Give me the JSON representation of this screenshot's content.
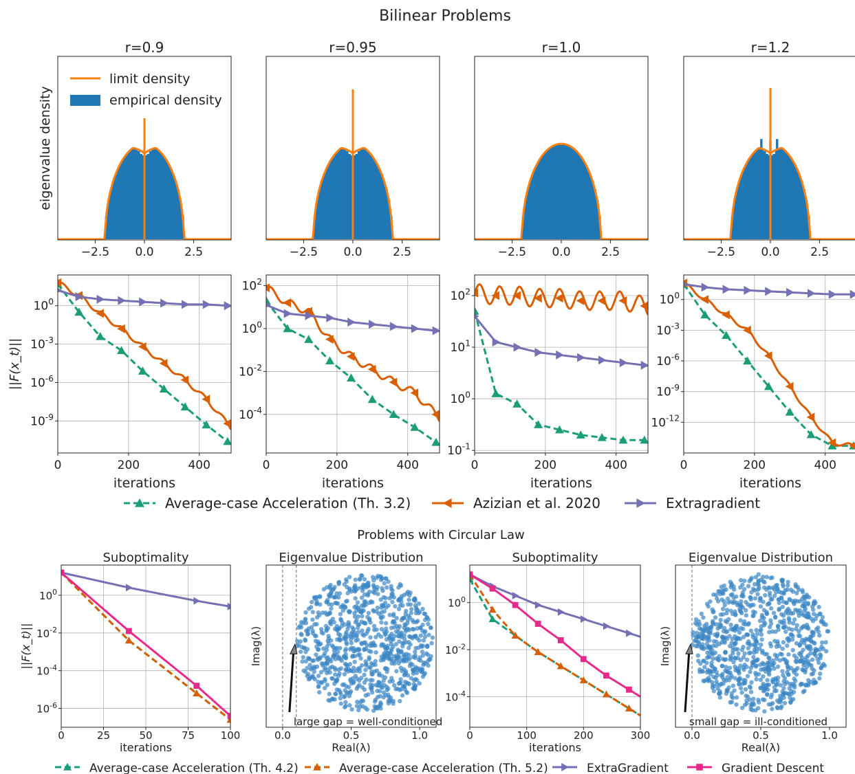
{
  "title": "Bilinear Problems",
  "subtitle": "Problems with Circular Law",
  "colors": {
    "green": "#1b9e77",
    "orange": "#d95f02",
    "purple": "#7570b3",
    "pink": "#e7298a",
    "blue": "#1f77b4",
    "density": "#ff7f0e",
    "grid": "#b0b0b0",
    "scatter": "#3a86c4"
  },
  "legend_top": {
    "items": [
      {
        "label": "Average-case Acceleration (Th. 3.2)",
        "color": "#1b9e77",
        "dash": true,
        "marker": "triangle-up"
      },
      {
        "label": "Azizian et al. 2020",
        "color": "#d95f02",
        "dash": false,
        "marker": "triangle-left"
      },
      {
        "label": "Extragradient",
        "color": "#7570b3",
        "dash": false,
        "marker": "triangle-right"
      }
    ]
  },
  "legend_bottom": {
    "items": [
      {
        "label": "Average-case Acceleration (Th. 4.2)",
        "color": "#1b9e77",
        "dash": true,
        "marker": "triangle-up"
      },
      {
        "label": "Average-case Acceleration (Th. 5.2)",
        "color": "#d95f02",
        "dash": true,
        "marker": "triangle-up"
      },
      {
        "label": "ExtraGradient",
        "color": "#7570b3",
        "dash": false,
        "marker": "triangle-right"
      },
      {
        "label": "Gradient Descent",
        "color": "#e7298a",
        "dash": false,
        "marker": "square"
      }
    ]
  },
  "chart_data": [
    {
      "type": "bar",
      "title": "r=0.9",
      "ylabel": "eigenvalue density",
      "xticks": [
        "−2.5",
        "0.0",
        "2.5"
      ],
      "xlim": [
        -4.4,
        4.4
      ],
      "spike": true,
      "legend": [
        "limit density",
        "empirical density"
      ]
    },
    {
      "type": "bar",
      "title": "r=0.95",
      "ylabel": "",
      "xticks": [
        "−2.5",
        "0.0",
        "2.5"
      ],
      "xlim": [
        -4.4,
        4.4
      ],
      "spike": true
    },
    {
      "type": "bar",
      "title": "r=1.0",
      "ylabel": "",
      "xticks": [
        "−2.5",
        "0.0",
        "2.5"
      ],
      "xlim": [
        -4.4,
        4.4
      ],
      "spike": false
    },
    {
      "type": "bar",
      "title": "r=1.2",
      "ylabel": "",
      "xticks": [
        "−2.5",
        "0.0",
        "2.5"
      ],
      "xlim": [
        -4.4,
        4.4
      ],
      "spike": true
    },
    {
      "type": "line",
      "scale": "log",
      "xlabel": "iterations",
      "ylabel": "||F(x_t)||",
      "xlim": [
        0,
        490
      ],
      "ylim": [
        -11.5,
        2.4
      ],
      "xticks": [
        "0",
        "200",
        "400"
      ],
      "yticks": [
        "10^0",
        "10^-3",
        "10^-6",
        "10^-9"
      ],
      "series": [
        {
          "x": [
            0,
            60,
            120,
            180,
            240,
            300,
            360,
            420,
            480
          ],
          "log10": [
            1.7,
            -0.5,
            -2.4,
            -3.5,
            -5.1,
            -6.5,
            -7.9,
            -9.3,
            -10.6
          ]
        },
        {
          "x": [
            0,
            60,
            120,
            180,
            240,
            300,
            360,
            420,
            480
          ],
          "log10": [
            1.8,
            0.8,
            -0.6,
            -1.8,
            -3.2,
            -4.5,
            -5.8,
            -7.3,
            -9.2
          ]
        },
        {
          "x": [
            0,
            60,
            120,
            180,
            240,
            300,
            360,
            420,
            480
          ],
          "log10": [
            1.2,
            0.7,
            0.5,
            0.4,
            0.3,
            0.2,
            0.1,
            0.1,
            0.0
          ]
        }
      ]
    },
    {
      "type": "line",
      "scale": "log",
      "xlabel": "iterations",
      "ylabel": "",
      "xlim": [
        0,
        490
      ],
      "ylim": [
        -5.8,
        2.5
      ],
      "xticks": [
        "0",
        "200",
        "400"
      ],
      "yticks": [
        "10^2",
        "10^0",
        "10^-2",
        "10^-4"
      ],
      "series": [
        {
          "x": [
            0,
            60,
            120,
            180,
            240,
            300,
            360,
            420,
            480
          ],
          "log10": [
            1.3,
            0.0,
            -0.5,
            -1.5,
            -2.3,
            -3.3,
            -4.0,
            -4.6,
            -5.3
          ]
        },
        {
          "x": [
            0,
            60,
            120,
            180,
            240,
            300,
            360,
            420,
            480
          ],
          "log10": [
            1.9,
            1.2,
            0.8,
            -0.5,
            -1.3,
            -1.9,
            -2.5,
            -3.0,
            -4.0
          ]
        },
        {
          "x": [
            0,
            60,
            120,
            180,
            240,
            300,
            360,
            420,
            480
          ],
          "log10": [
            1.1,
            0.7,
            0.6,
            0.5,
            0.3,
            0.2,
            0.1,
            0.0,
            -0.1
          ]
        }
      ]
    },
    {
      "type": "line",
      "scale": "log",
      "xlabel": "iterations",
      "ylabel": "",
      "xlim": [
        0,
        490
      ],
      "ylim": [
        -1.05,
        2.4
      ],
      "xticks": [
        "0",
        "200",
        "400"
      ],
      "yticks": [
        "10^2",
        "10^1",
        "10^0",
        "10^-1"
      ],
      "series": [
        {
          "x": [
            0,
            60,
            120,
            180,
            240,
            300,
            360,
            420,
            480
          ],
          "log10": [
            1.7,
            0.1,
            -0.1,
            -0.5,
            -0.6,
            -0.7,
            -0.75,
            -0.8,
            -0.8
          ]
        },
        {
          "x": [
            0,
            60,
            120,
            180,
            240,
            300,
            360,
            420,
            480
          ],
          "log10": [
            2.05,
            2.0,
            2.0,
            1.95,
            1.95,
            1.9,
            1.9,
            1.9,
            1.8
          ]
        },
        {
          "x": [
            0,
            60,
            120,
            180,
            240,
            300,
            360,
            420,
            480
          ],
          "log10": [
            1.6,
            1.1,
            1.0,
            0.9,
            0.85,
            0.8,
            0.75,
            0.7,
            0.65
          ]
        }
      ]
    },
    {
      "type": "line",
      "scale": "log",
      "xlabel": "iterations",
      "ylabel": "",
      "xlim": [
        0,
        490
      ],
      "ylim": [
        -15.0,
        2.4
      ],
      "xticks": [
        "0",
        "200",
        "400"
      ],
      "yticks": [
        "10^0",
        "10^-3",
        "10^-6",
        "10^-9",
        "10^-12"
      ],
      "series": [
        {
          "x": [
            0,
            60,
            120,
            180,
            240,
            300,
            360,
            420,
            480
          ],
          "log10": [
            1.5,
            -1.5,
            -3.5,
            -6.0,
            -8.5,
            -11.0,
            -13.2,
            -14.3,
            -14.3
          ]
        },
        {
          "x": [
            0,
            60,
            120,
            180,
            240,
            300,
            360,
            420,
            480
          ],
          "log10": [
            1.6,
            0.0,
            -1.5,
            -3.0,
            -5.5,
            -8.5,
            -11.5,
            -14.0,
            -14.3
          ]
        },
        {
          "x": [
            0,
            60,
            120,
            180,
            240,
            300,
            360,
            420,
            480
          ],
          "log10": [
            1.5,
            1.2,
            1.0,
            0.9,
            0.8,
            0.7,
            0.6,
            0.5,
            0.5
          ]
        }
      ]
    },
    {
      "type": "line",
      "scale": "log",
      "title": "Suboptimality",
      "xlabel": "iterations",
      "ylabel": "||F(x_t)||",
      "xlim": [
        0,
        100
      ],
      "ylim": [
        -7.0,
        1.6
      ],
      "xticks": [
        "0",
        "25",
        "50",
        "75",
        "100"
      ],
      "yticks": [
        "10^0",
        "10^-2",
        "10^-4",
        "10^-6"
      ],
      "series": [
        {
          "x": [
            0,
            40,
            80,
            100
          ],
          "log10": [
            1.2,
            -2.4,
            -5.2,
            -6.6
          ]
        },
        {
          "x": [
            0,
            40,
            80,
            100
          ],
          "log10": [
            1.2,
            -2.4,
            -5.2,
            -6.6
          ]
        },
        {
          "x": [
            0,
            40,
            80,
            100
          ],
          "log10": [
            1.2,
            0.4,
            -0.3,
            -0.6
          ]
        },
        {
          "x": [
            0,
            40,
            80,
            100
          ],
          "log10": [
            1.2,
            -1.9,
            -4.8,
            -6.4
          ]
        }
      ]
    },
    {
      "type": "scatter",
      "title": "Eigenvalue Distribution",
      "xlabel": "Real(λ)",
      "ylabel": "Imag(λ)",
      "xticks": [
        "0.0",
        "0.5",
        "1.0"
      ],
      "center": [
        0.6,
        0
      ],
      "radius": 0.5,
      "annotation": "large gap = well-conditioned"
    },
    {
      "type": "line",
      "scale": "log",
      "title": "Suboptimality",
      "xlabel": "iterations",
      "ylabel": "",
      "xlim": [
        0,
        300
      ],
      "ylim": [
        -5.3,
        1.6
      ],
      "xticks": [
        "0",
        "100",
        "200",
        "300"
      ],
      "yticks": [
        "10^0",
        "10^-2",
        "10^-4"
      ],
      "series": [
        {
          "x": [
            0,
            40,
            80,
            120,
            160,
            200,
            240,
            280
          ],
          "log10": [
            1.0,
            -0.7,
            -1.4,
            -2.1,
            -2.7,
            -3.3,
            -3.9,
            -4.5
          ]
        },
        {
          "x": [
            0,
            40,
            80,
            120,
            160,
            200,
            240,
            280
          ],
          "log10": [
            1.2,
            -0.3,
            -1.4,
            -2.1,
            -2.7,
            -3.3,
            -3.9,
            -4.5
          ]
        },
        {
          "x": [
            0,
            40,
            80,
            120,
            160,
            200,
            240,
            280
          ],
          "log10": [
            1.2,
            0.7,
            0.3,
            -0.1,
            -0.4,
            -0.7,
            -1.0,
            -1.3
          ]
        },
        {
          "x": [
            0,
            40,
            80,
            120,
            160,
            200,
            240,
            280
          ],
          "log10": [
            1.2,
            0.6,
            -0.1,
            -0.9,
            -1.6,
            -2.4,
            -3.1,
            -3.7
          ]
        }
      ]
    },
    {
      "type": "scatter",
      "title": "Eigenvalue Distribution",
      "xlabel": "Real(λ)",
      "ylabel": "Imag(λ)",
      "xticks": [
        "0.0",
        "0.5",
        "1.0"
      ],
      "center": [
        0.5,
        0
      ],
      "radius": 0.5,
      "annotation": "small gap = ill-conditioned"
    }
  ]
}
